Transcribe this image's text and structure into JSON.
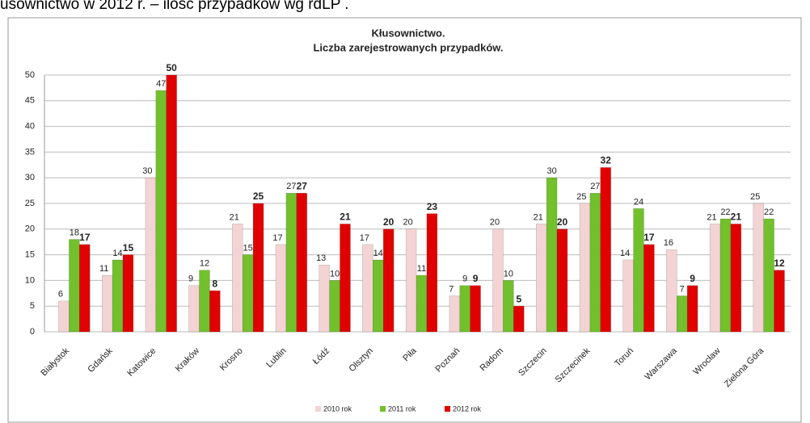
{
  "caption": "usownictwo w 2012 r. – ilość przypadków wg rdLP .",
  "chart_data": {
    "type": "bar",
    "title": [
      "Kłusownictwo.",
      "Liczba zarejestrowanych przypadków."
    ],
    "categories": [
      "Białystok",
      "Gdańsk",
      "Katowice",
      "Kraków",
      "Krosno",
      "Lublin",
      "Łódź",
      "Olsztyn",
      "Piła",
      "Poznań",
      "Radom",
      "Szczecin",
      "Szczecinek",
      "Toruń",
      "Warszawa",
      "Wrocław",
      "Zielona Góra"
    ],
    "series": [
      {
        "name": "2010 rok",
        "color": "#f3d3d3",
        "values": [
          6,
          11,
          30,
          9,
          21,
          17,
          13,
          17,
          20,
          7,
          20,
          21,
          25,
          14,
          16,
          21,
          25
        ]
      },
      {
        "name": "2011 rok",
        "color": "#72c02c",
        "values": [
          18,
          14,
          47,
          12,
          15,
          27,
          10,
          14,
          11,
          9,
          10,
          30,
          27,
          24,
          7,
          22,
          22
        ]
      },
      {
        "name": "2012 rok",
        "color": "#e00000",
        "values": [
          17,
          15,
          50,
          8,
          25,
          27,
          21,
          20,
          23,
          9,
          5,
          20,
          32,
          17,
          9,
          21,
          12
        ]
      }
    ],
    "ylim": [
      0,
      50
    ],
    "yticks": [
      0,
      5,
      10,
      15,
      20,
      25,
      30,
      35,
      40,
      45,
      50
    ],
    "grid": true,
    "legend": "bottom"
  }
}
